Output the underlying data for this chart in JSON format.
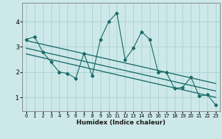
{
  "xlabel": "Humidex (Indice chaleur)",
  "bg_color": "#cde8e8",
  "grid_color": "#aacfcf",
  "line_color": "#1a6b6b",
  "x_ticks": [
    0,
    1,
    2,
    3,
    4,
    5,
    6,
    7,
    8,
    9,
    10,
    11,
    12,
    13,
    14,
    15,
    16,
    17,
    18,
    19,
    20,
    21,
    22,
    23
  ],
  "y_ticks": [
    1,
    2,
    3,
    4
  ],
  "ylim": [
    0.45,
    4.75
  ],
  "xlim": [
    -0.5,
    23.5
  ],
  "series1_x": [
    0,
    1,
    2,
    3,
    4,
    5,
    6,
    7,
    8,
    9,
    10,
    11,
    12,
    13,
    14,
    15,
    16,
    17,
    18,
    19,
    20,
    21,
    22,
    23
  ],
  "series1_y": [
    3.3,
    3.4,
    2.8,
    2.4,
    2.0,
    1.95,
    1.75,
    2.75,
    1.85,
    3.3,
    4.0,
    4.35,
    2.5,
    2.95,
    3.6,
    3.3,
    2.0,
    2.0,
    1.35,
    1.4,
    1.8,
    1.05,
    1.1,
    0.7
  ],
  "trend1_x": [
    0,
    23
  ],
  "trend1_y": [
    3.25,
    1.55
  ],
  "trend2_x": [
    0,
    23
  ],
  "trend2_y": [
    2.95,
    1.25
  ],
  "trend3_x": [
    0,
    23
  ],
  "trend3_y": [
    2.72,
    1.0
  ]
}
